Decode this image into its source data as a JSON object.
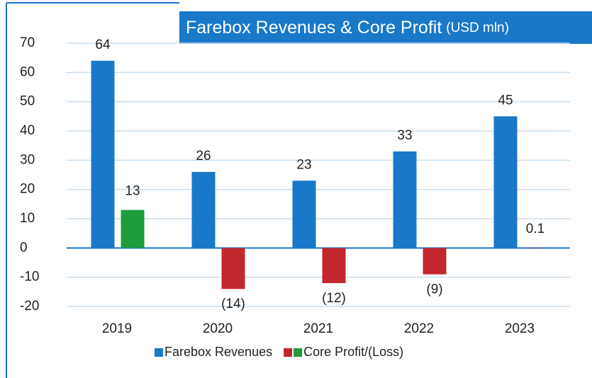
{
  "chart_data": {
    "type": "bar",
    "title": "Farebox Revenues & Core Profit",
    "subtitle": "(USD mln)",
    "categories": [
      "2019",
      "2020",
      "2021",
      "2022",
      "2023"
    ],
    "series": [
      {
        "name": "Farebox Revenues",
        "color": "#1a78c8",
        "values": [
          64,
          26,
          23,
          33,
          45
        ]
      },
      {
        "name": "Core Profit/(Loss)",
        "color": "#c1272d",
        "values": [
          13,
          -14,
          -12,
          -9,
          0.1
        ],
        "value_labels": [
          "13",
          "(14)",
          "(12)",
          "(9)",
          "0.1"
        ],
        "colors": [
          "#1e9c3c",
          "#c1272d",
          "#c1272d",
          "#c1272d",
          "#c1272d"
        ],
        "legend_colors": [
          "#c1272d",
          "#1e9c3c"
        ]
      }
    ],
    "ylim": [
      -20,
      70
    ],
    "yticks": [
      -20,
      -10,
      0,
      10,
      20,
      30,
      40,
      50,
      60,
      70
    ],
    "grid": true
  }
}
